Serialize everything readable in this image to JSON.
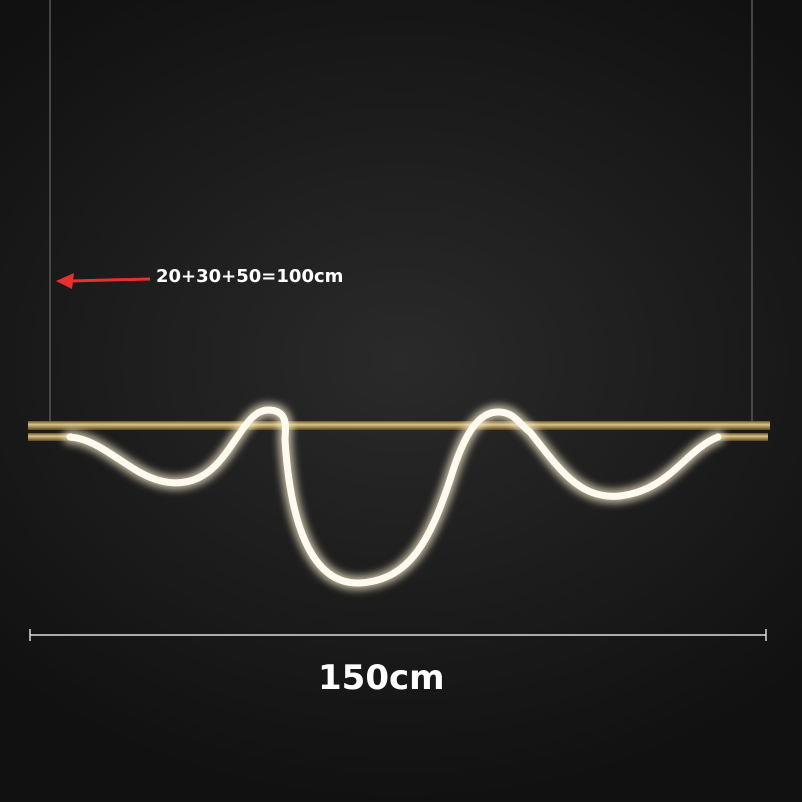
{
  "annotations": {
    "drop_length": "20+30+50=100cm",
    "width": "150cm"
  },
  "colors": {
    "arrow": "#e8302e",
    "bar": "#a88a4a",
    "tube_glow": "#fffaf0",
    "background": "#1a1a1a"
  }
}
